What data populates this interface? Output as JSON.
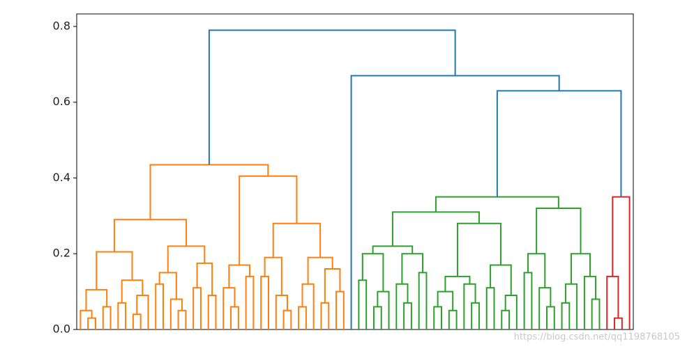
{
  "chart_data": {
    "type": "dendrogram",
    "ylim": [
      0,
      0.833
    ],
    "yticks": [
      {
        "value": 0,
        "label": "0.0"
      },
      0.2,
      0.4,
      0.6,
      0.8
    ],
    "watermark": "https://blog.csdn.net/qq1198768105",
    "tree": {
      "height": 0.79,
      "color": "#1f77b4",
      "children": [
        {
          "height": 0.435,
          "color": "#ff7f0e",
          "children": [
            {
              "height": 0.29,
              "children": [
                {
                  "height": 0.205,
                  "children": [
                    {
                      "height": 0.105,
                      "children": [
                        {
                          "height": 0.05,
                          "children": [
                            0,
                            {
                              "height": 0.03,
                              "children": [
                                0,
                                0
                              ]
                            }
                          ]
                        },
                        {
                          "height": 0.06,
                          "children": [
                            0,
                            0
                          ]
                        }
                      ]
                    },
                    {
                      "height": 0.13,
                      "children": [
                        {
                          "height": 0.07,
                          "children": [
                            0,
                            0
                          ]
                        },
                        {
                          "height": 0.09,
                          "children": [
                            {
                              "height": 0.04,
                              "children": [
                                0,
                                0
                              ]
                            },
                            0
                          ]
                        }
                      ]
                    }
                  ]
                },
                {
                  "height": 0.22,
                  "children": [
                    {
                      "height": 0.15,
                      "children": [
                        {
                          "height": 0.12,
                          "children": [
                            0,
                            0
                          ]
                        },
                        {
                          "height": 0.08,
                          "children": [
                            0,
                            {
                              "height": 0.05,
                              "children": [
                                0,
                                0
                              ]
                            }
                          ]
                        }
                      ]
                    },
                    {
                      "height": 0.175,
                      "children": [
                        {
                          "height": 0.11,
                          "children": [
                            0,
                            0
                          ]
                        },
                        {
                          "height": 0.09,
                          "children": [
                            0,
                            0
                          ]
                        }
                      ]
                    }
                  ]
                }
              ]
            },
            {
              "height": 0.405,
              "children": [
                {
                  "height": 0.17,
                  "children": [
                    {
                      "height": 0.11,
                      "children": [
                        0,
                        {
                          "height": 0.06,
                          "children": [
                            0,
                            0
                          ]
                        }
                      ]
                    },
                    {
                      "height": 0.14,
                      "children": [
                        0,
                        0
                      ]
                    }
                  ]
                },
                {
                  "height": 0.28,
                  "children": [
                    {
                      "height": 0.19,
                      "children": [
                        {
                          "height": 0.14,
                          "children": [
                            0,
                            0
                          ]
                        },
                        {
                          "height": 0.09,
                          "children": [
                            0,
                            {
                              "height": 0.05,
                              "children": [
                                0,
                                0
                              ]
                            }
                          ]
                        }
                      ]
                    },
                    {
                      "height": 0.19,
                      "children": [
                        {
                          "height": 0.12,
                          "children": [
                            {
                              "height": 0.06,
                              "children": [
                                0,
                                0
                              ]
                            },
                            0
                          ]
                        },
                        {
                          "height": 0.16,
                          "children": [
                            {
                              "height": 0.07,
                              "children": [
                                0,
                                0
                              ]
                            },
                            {
                              "height": 0.1,
                              "children": [
                                0,
                                0
                              ]
                            }
                          ]
                        }
                      ]
                    }
                  ]
                }
              ]
            }
          ]
        },
        {
          "height": 0.67,
          "children": [
            0,
            {
              "height": 0.63,
              "children": [
                {
                  "height": 0.35,
                  "color": "#2ca02c",
                  "children": [
                    {
                      "height": 0.31,
                      "children": [
                        {
                          "height": 0.22,
                          "children": [
                            {
                              "height": 0.2,
                              "children": [
                                {
                                  "height": 0.13,
                                  "children": [
                                    0,
                                    0
                                  ]
                                },
                                {
                                  "height": 0.1,
                                  "children": [
                                    {
                                      "height": 0.06,
                                      "children": [
                                        0,
                                        0
                                      ]
                                    },
                                    0
                                  ]
                                }
                              ]
                            },
                            {
                              "height": 0.2,
                              "children": [
                                {
                                  "height": 0.12,
                                  "children": [
                                    0,
                                    {
                                      "height": 0.07,
                                      "children": [
                                        0,
                                        0
                                      ]
                                    }
                                  ]
                                },
                                {
                                  "height": 0.15,
                                  "children": [
                                    0,
                                    0
                                  ]
                                }
                              ]
                            }
                          ]
                        },
                        {
                          "height": 0.28,
                          "children": [
                            {
                              "height": 0.14,
                              "children": [
                                {
                                  "height": 0.1,
                                  "children": [
                                    {
                                      "height": 0.06,
                                      "children": [
                                        0,
                                        0
                                      ]
                                    },
                                    {
                                      "height": 0.05,
                                      "children": [
                                        0,
                                        0
                                      ]
                                    }
                                  ]
                                },
                                {
                                  "height": 0.12,
                                  "children": [
                                    0,
                                    {
                                      "height": 0.07,
                                      "children": [
                                        0,
                                        0
                                      ]
                                    }
                                  ]
                                }
                              ]
                            },
                            {
                              "height": 0.17,
                              "children": [
                                {
                                  "height": 0.11,
                                  "children": [
                                    0,
                                    0
                                  ]
                                },
                                {
                                  "height": 0.09,
                                  "children": [
                                    {
                                      "height": 0.05,
                                      "children": [
                                        0,
                                        0
                                      ]
                                    },
                                    0
                                  ]
                                }
                              ]
                            }
                          ]
                        }
                      ]
                    },
                    {
                      "height": 0.32,
                      "children": [
                        {
                          "height": 0.2,
                          "children": [
                            {
                              "height": 0.15,
                              "children": [
                                0,
                                0
                              ]
                            },
                            {
                              "height": 0.11,
                              "children": [
                                0,
                                {
                                  "height": 0.06,
                                  "children": [
                                    0,
                                    0
                                  ]
                                }
                              ]
                            }
                          ]
                        },
                        {
                          "height": 0.2,
                          "children": [
                            {
                              "height": 0.12,
                              "children": [
                                {
                                  "height": 0.07,
                                  "children": [
                                    0,
                                    0
                                  ]
                                },
                                0
                              ]
                            },
                            {
                              "height": 0.14,
                              "children": [
                                0,
                                {
                                  "height": 0.08,
                                  "children": [
                                    0,
                                    0
                                  ]
                                }
                              ]
                            }
                          ]
                        }
                      ]
                    }
                  ]
                },
                {
                  "height": 0.35,
                  "color": "#d62728",
                  "children": [
                    {
                      "height": 0.14,
                      "children": [
                        0,
                        {
                          "height": 0.03,
                          "children": [
                            0,
                            0
                          ]
                        }
                      ]
                    },
                    0
                  ]
                }
              ]
            }
          ]
        }
      ]
    }
  }
}
